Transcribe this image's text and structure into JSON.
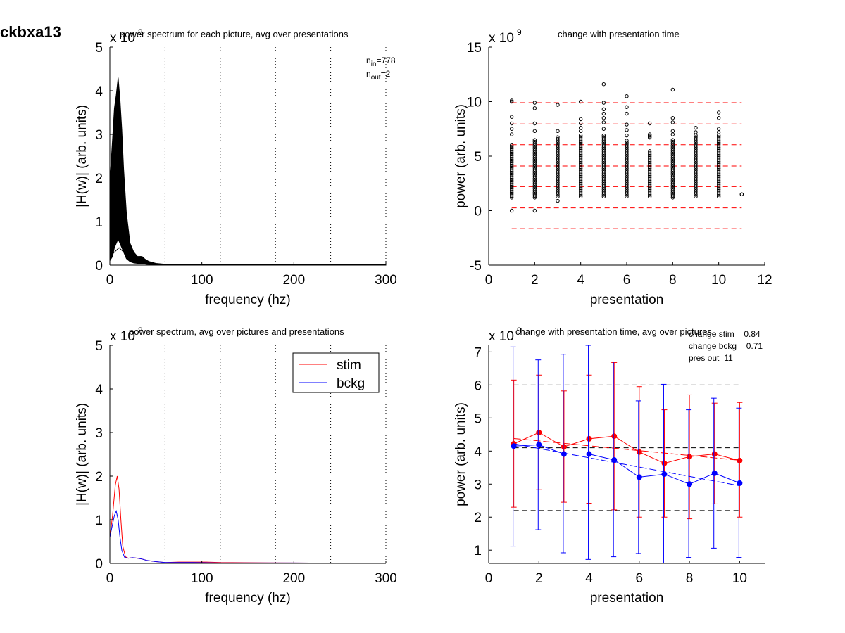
{
  "figure_title": "ckbxa13",
  "chart_data": [
    {
      "id": "p1",
      "type": "line",
      "title": "power spectrum for each picture, avg over presentations",
      "xlabel": "frequency (hz)",
      "ylabel": "|H(w)| (arb. units)",
      "y_exponent": "x 10",
      "y_exponent_power": "8",
      "xlim": [
        0,
        300
      ],
      "ylim": [
        0,
        5
      ],
      "xticks": [
        0,
        100,
        200,
        300
      ],
      "yticks": [
        0,
        1,
        2,
        3,
        4,
        5
      ],
      "vlines_dotted": [
        60,
        120,
        180,
        240,
        300
      ],
      "annotation_lines": [
        {
          "base": "n",
          "sub": "in",
          "rest": "=778"
        },
        {
          "base": "n",
          "sub": "out",
          "rest": "=2"
        }
      ],
      "x": [
        0,
        3,
        5,
        7,
        9,
        11,
        13,
        15,
        18,
        22,
        26,
        30,
        35,
        40,
        50,
        60,
        80,
        100,
        150,
        200,
        250,
        300
      ],
      "band_upper": [
        1.9,
        2.9,
        3.6,
        3.9,
        4.3,
        3.8,
        3.1,
        2.2,
        1.2,
        0.5,
        0.3,
        0.2,
        0.2,
        0.1,
        0.04,
        0.02,
        0.02,
        0.02,
        0.02,
        0.02,
        0.01,
        0.01
      ],
      "band_lower": [
        0.1,
        0.2,
        0.4,
        0.5,
        0.6,
        0.5,
        0.4,
        0.3,
        0.15,
        0.08,
        0.05,
        0.04,
        0.03,
        0.02,
        0.01,
        0.0,
        0.0,
        0.0,
        0.0,
        0.0,
        0.0,
        0.0
      ],
      "outlier_traces": [
        {
          "x": [
            0,
            5,
            10,
            15,
            20,
            30,
            40,
            50,
            60
          ],
          "values": [
            1.3,
            1.0,
            0.6,
            0.3,
            0.12,
            0.05,
            0.02,
            0.01,
            0.0
          ]
        },
        {
          "x": [
            0,
            10,
            20,
            28,
            33,
            38,
            45,
            55,
            60
          ],
          "values": [
            0.2,
            0.4,
            0.2,
            0.1,
            0.2,
            0.14,
            0.05,
            0.01,
            0.0
          ]
        }
      ]
    },
    {
      "id": "p2",
      "type": "scatter",
      "title": "change with presentation time",
      "xlabel": "presentation",
      "ylabel": "power (arb. units)",
      "y_exponent": "x 10",
      "y_exponent_power": "9",
      "xlim": [
        0,
        12
      ],
      "ylim": [
        -5,
        15
      ],
      "xticks": [
        0,
        2,
        4,
        6,
        8,
        10,
        12
      ],
      "yticks": [
        -5,
        0,
        5,
        10,
        15
      ],
      "hlines_dashed": [
        9.9,
        7.95,
        6.05,
        4.1,
        2.2,
        0.25,
        -1.65
      ],
      "hline_color": "#ff0000",
      "xmax_data": 11,
      "columns": [
        {
          "x": 1,
          "low": 0.0,
          "dense_low": 1.2,
          "dense_high": 6.0,
          "outliers": [
            0.0,
            7.0,
            7.5,
            8.0,
            8.6,
            10.0,
            10.1
          ]
        },
        {
          "x": 2,
          "low": 0.0,
          "dense_low": 1.2,
          "dense_high": 6.5,
          "outliers": [
            0.0,
            7.3,
            8.0,
            9.4,
            9.9
          ]
        },
        {
          "x": 3,
          "low": 0.9,
          "dense_low": 1.3,
          "dense_high": 6.8,
          "outliers": [
            0.9,
            7.3,
            9.7
          ]
        },
        {
          "x": 4,
          "low": 1.0,
          "dense_low": 1.3,
          "dense_high": 7.0,
          "outliers": [
            7.3,
            7.6,
            8.0,
            8.4,
            10.0
          ]
        },
        {
          "x": 5,
          "low": 1.0,
          "dense_low": 1.3,
          "dense_high": 7.0,
          "outliers": [
            7.5,
            8.1,
            8.5,
            8.9,
            9.3,
            9.9,
            11.6
          ]
        },
        {
          "x": 6,
          "low": 1.0,
          "dense_low": 1.3,
          "dense_high": 6.5,
          "outliers": [
            6.9,
            7.4,
            7.9,
            8.9,
            9.5,
            10.5
          ]
        },
        {
          "x": 7,
          "low": 1.0,
          "dense_low": 1.3,
          "dense_high": 5.5,
          "outliers": [
            6.7,
            6.8,
            6.9,
            7.0,
            8.0
          ]
        },
        {
          "x": 8,
          "low": 0.8,
          "dense_low": 1.2,
          "dense_high": 6.5,
          "outliers": [
            7.0,
            7.3,
            8.1,
            8.5,
            11.1
          ]
        },
        {
          "x": 9,
          "low": 1.0,
          "dense_low": 1.3,
          "dense_high": 7.0,
          "outliers": [
            7.2,
            7.6
          ]
        },
        {
          "x": 10,
          "low": 1.0,
          "dense_low": 1.3,
          "dense_high": 7.0,
          "outliers": [
            7.2,
            7.5,
            8.5,
            9.0
          ]
        },
        {
          "x": 11,
          "low": 1.5,
          "dense_low": 1.5,
          "dense_high": 1.5,
          "outliers": [
            1.5
          ]
        }
      ]
    },
    {
      "id": "p3",
      "type": "line",
      "title": "power spectrum, avg over pictures and presentations",
      "xlabel": "frequency (hz)",
      "ylabel": "|H(w)| (arb. units)",
      "y_exponent": "x 10",
      "y_exponent_power": "8",
      "xlim": [
        0,
        300
      ],
      "ylim": [
        0,
        5
      ],
      "xticks": [
        0,
        100,
        200,
        300
      ],
      "yticks": [
        0,
        1,
        2,
        3,
        4,
        5
      ],
      "vlines_dotted": [
        60,
        120,
        180,
        240,
        300
      ],
      "legend": "top-right",
      "series": [
        {
          "name": "stim",
          "color": "#ff0000",
          "x": [
            0,
            3,
            6,
            8,
            10,
            12,
            14,
            17,
            20,
            25,
            30,
            35,
            40,
            50,
            60,
            75,
            90,
            105,
            120,
            200,
            300
          ],
          "values": [
            0.6,
            1.1,
            1.8,
            2.0,
            1.7,
            1.0,
            0.4,
            0.15,
            0.12,
            0.13,
            0.12,
            0.1,
            0.07,
            0.04,
            0.02,
            0.03,
            0.03,
            0.03,
            0.02,
            0.01,
            0.0
          ]
        },
        {
          "name": "bckg",
          "color": "#0000ff",
          "x": [
            0,
            3,
            5,
            7,
            9,
            11,
            13,
            16,
            20,
            25,
            30,
            35,
            40,
            50,
            60,
            90,
            120,
            200,
            300
          ],
          "values": [
            0.6,
            0.9,
            1.1,
            1.2,
            1.0,
            0.6,
            0.3,
            0.14,
            0.12,
            0.13,
            0.12,
            0.1,
            0.07,
            0.04,
            0.02,
            0.02,
            0.01,
            0.01,
            0.0
          ]
        }
      ]
    },
    {
      "id": "p4",
      "type": "line",
      "title": "change with presentation time, avg over pictures",
      "xlabel": "presentation",
      "ylabel": "power (arb. units)",
      "y_exponent": "x 10",
      "y_exponent_power": "9",
      "xlim": [
        0,
        11
      ],
      "ylim": [
        0.6,
        7.2
      ],
      "xticks": [
        0,
        2,
        4,
        6,
        8,
        10
      ],
      "yticks": [
        1,
        2,
        3,
        4,
        5,
        6,
        7
      ],
      "hlines_dashed": [
        6.0,
        4.1,
        2.2
      ],
      "annotation_lines": [
        "change stim = 0.84",
        "change bckg = 0.71",
        "pres out=11"
      ],
      "categories": [
        1,
        2,
        3,
        4,
        5,
        6,
        7,
        8,
        9,
        10
      ],
      "series": [
        {
          "name": "stim",
          "color": "#ff0000",
          "values": [
            4.22,
            4.56,
            4.13,
            4.37,
            4.45,
            3.97,
            3.63,
            3.83,
            3.91,
            3.71
          ],
          "err_low": [
            2.3,
            2.83,
            2.45,
            2.42,
            2.22,
            2.0,
            2.0,
            1.95,
            2.4,
            2.0
          ],
          "err_high": [
            6.15,
            6.3,
            5.82,
            6.3,
            6.68,
            5.95,
            5.25,
            5.7,
            5.45,
            5.47
          ],
          "trend": [
            4.38,
            3.72
          ]
        },
        {
          "name": "bckg",
          "color": "#0000ff",
          "values": [
            4.15,
            4.19,
            3.91,
            3.91,
            3.73,
            3.21,
            3.3,
            3.0,
            3.33,
            3.03
          ],
          "err_low": [
            1.12,
            1.62,
            0.92,
            0.72,
            0.8,
            0.9,
            0.55,
            0.78,
            1.06,
            0.78
          ],
          "err_high": [
            7.15,
            6.76,
            6.93,
            7.2,
            6.7,
            5.52,
            6.02,
            5.25,
            5.6,
            5.3
          ],
          "trend": [
            4.22,
            2.95
          ]
        }
      ]
    }
  ]
}
